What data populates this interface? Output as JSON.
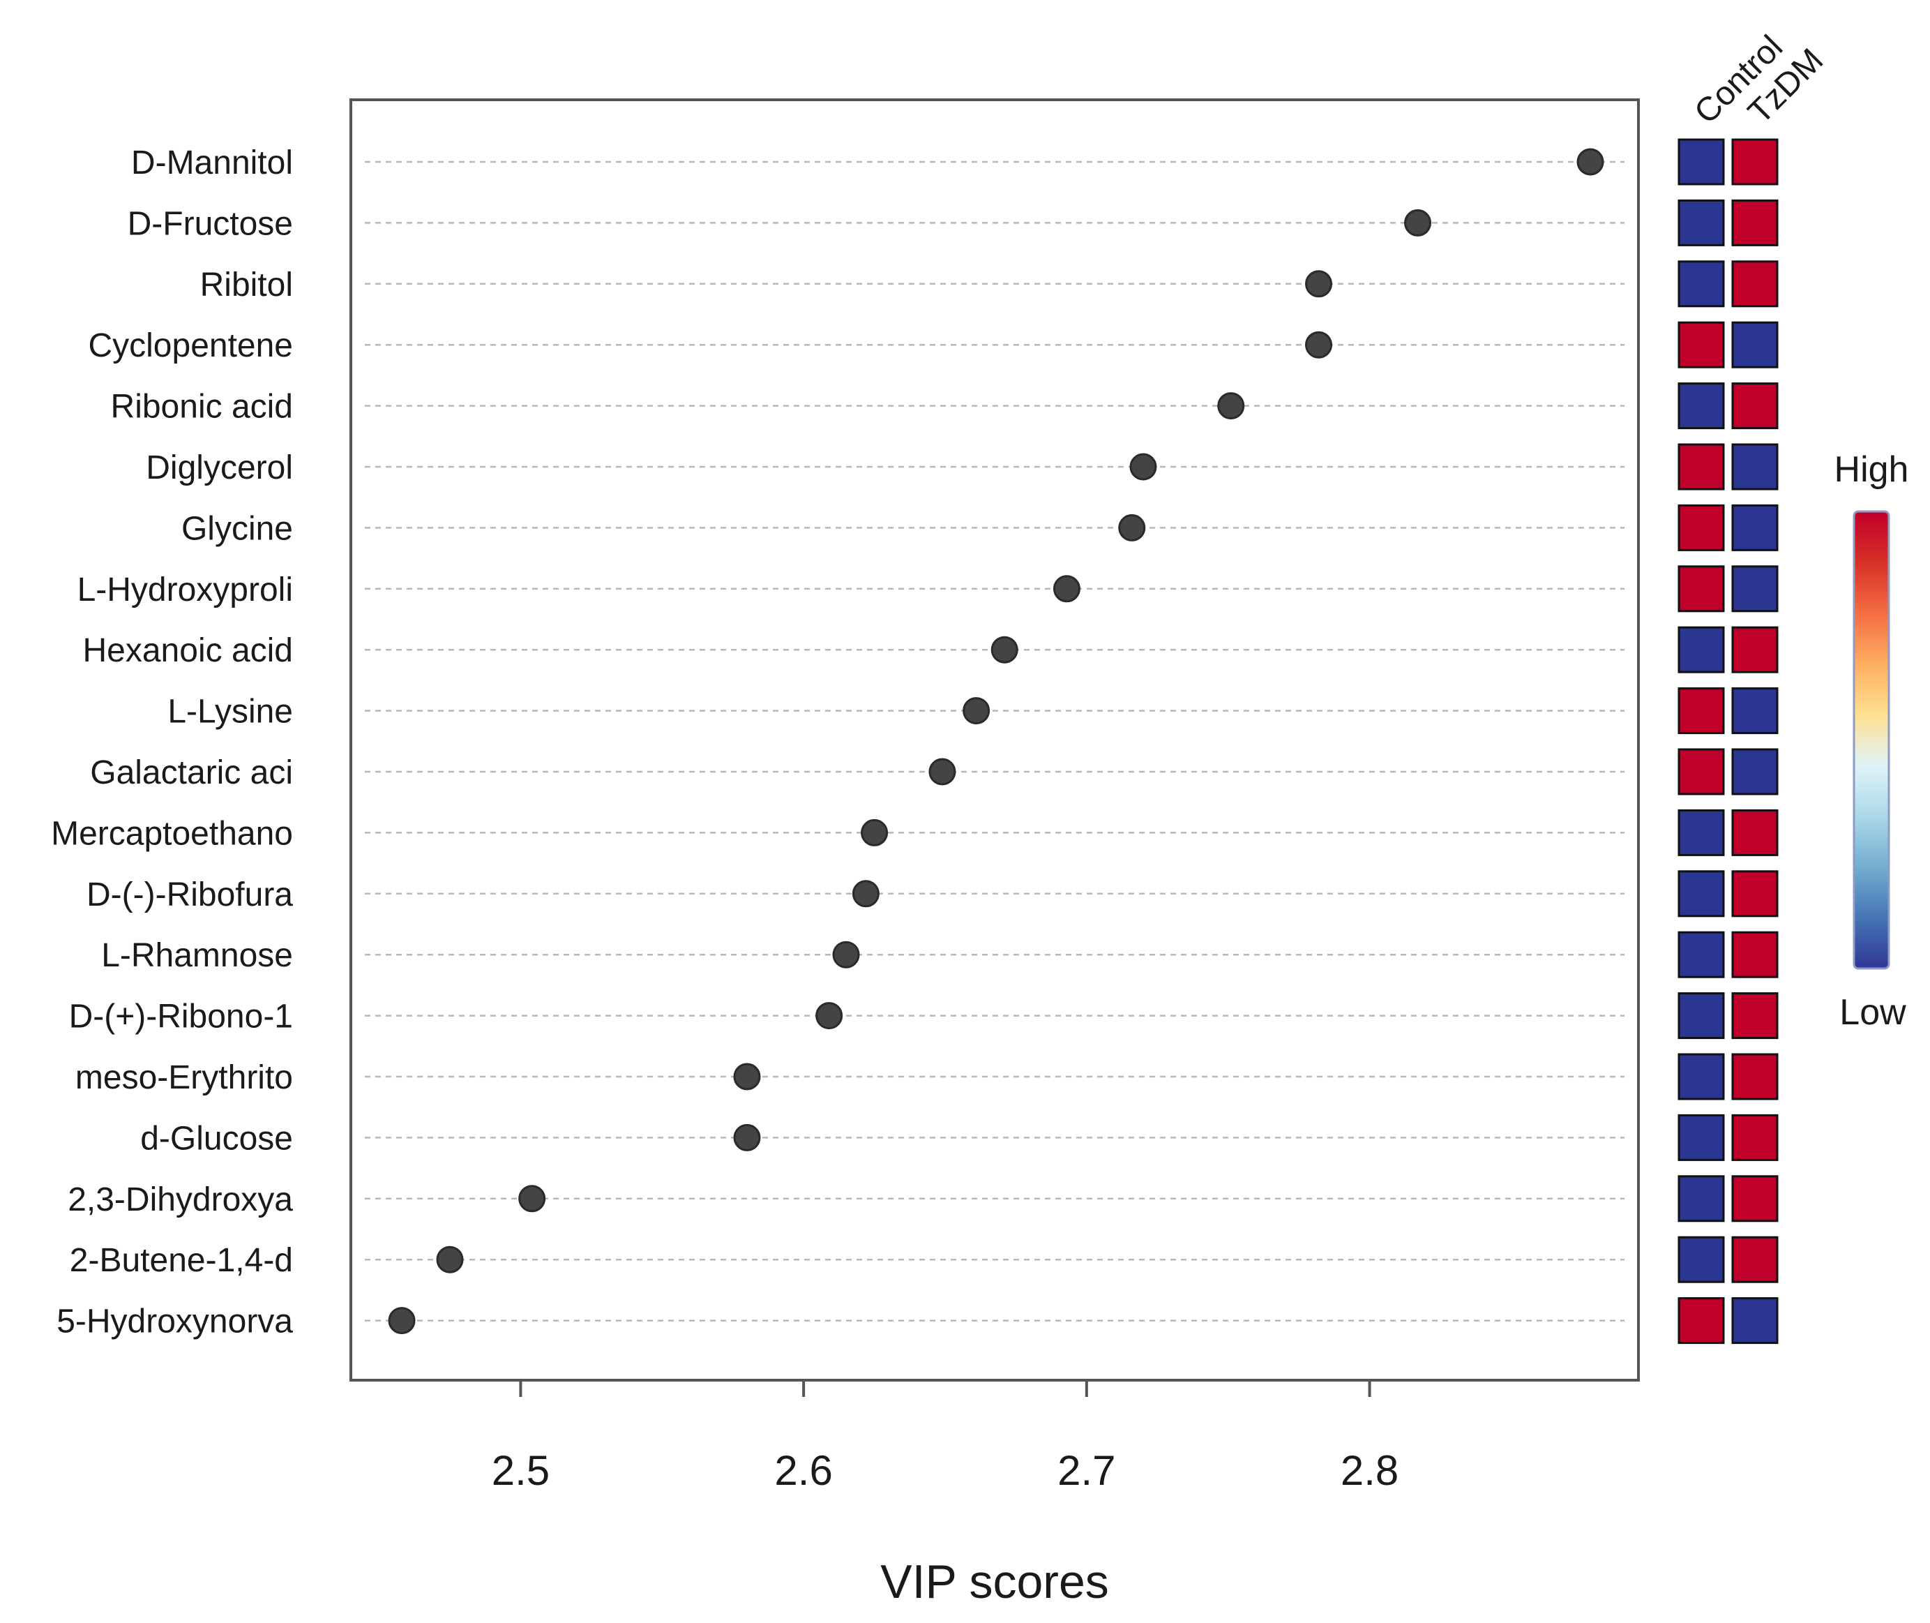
{
  "colors": {
    "high": "#c0002a",
    "low": "#2b3592",
    "point": "#444444",
    "grid": "#b8b8b8",
    "frame": "#555555",
    "gradient": [
      "#313695",
      "#4575b4",
      "#74add1",
      "#abd9e9",
      "#e0f3f8",
      "#fee090",
      "#fdae61",
      "#f46d43",
      "#d73027",
      "#c0002a"
    ]
  },
  "chart_data": {
    "type": "scatter",
    "xlabel": "VIP scores",
    "ylabel": "",
    "xlim": [
      2.44,
      2.895
    ],
    "xticks": [
      2.5,
      2.6,
      2.7,
      2.8
    ],
    "xtick_labels": [
      "2.5",
      "2.6",
      "2.7",
      "2.8"
    ],
    "grid": "horizontal dashed",
    "groups": [
      "Control",
      "TzDM"
    ],
    "legend": {
      "high_label": "High",
      "low_label": "Low",
      "position": "right"
    },
    "metabolites": [
      {
        "name": "D-Mannitol",
        "vip": 2.878,
        "control": "low",
        "tzdm": "high"
      },
      {
        "name": "D-Fructose",
        "vip": 2.817,
        "control": "low",
        "tzdm": "high"
      },
      {
        "name": "Ribitol",
        "vip": 2.782,
        "control": "low",
        "tzdm": "high"
      },
      {
        "name": "Cyclopentene",
        "vip": 2.782,
        "control": "high",
        "tzdm": "low"
      },
      {
        "name": "Ribonic acid",
        "vip": 2.751,
        "control": "low",
        "tzdm": "high"
      },
      {
        "name": "Diglycerol",
        "vip": 2.72,
        "control": "high",
        "tzdm": "low"
      },
      {
        "name": "Glycine",
        "vip": 2.716,
        "control": "high",
        "tzdm": "low"
      },
      {
        "name": "L-Hydroxyproli",
        "vip": 2.693,
        "control": "high",
        "tzdm": "low"
      },
      {
        "name": "Hexanoic acid",
        "vip": 2.671,
        "control": "low",
        "tzdm": "high"
      },
      {
        "name": "L-Lysine",
        "vip": 2.661,
        "control": "high",
        "tzdm": "low"
      },
      {
        "name": "Galactaric aci",
        "vip": 2.649,
        "control": "high",
        "tzdm": "low"
      },
      {
        "name": "Mercaptoethano",
        "vip": 2.625,
        "control": "low",
        "tzdm": "high"
      },
      {
        "name": "D-(-)-Ribofura",
        "vip": 2.622,
        "control": "low",
        "tzdm": "high"
      },
      {
        "name": "L-Rhamnose",
        "vip": 2.615,
        "control": "low",
        "tzdm": "high"
      },
      {
        "name": "D-(+)-Ribono-1",
        "vip": 2.609,
        "control": "low",
        "tzdm": "high"
      },
      {
        "name": "meso-Erythrito",
        "vip": 2.58,
        "control": "low",
        "tzdm": "high"
      },
      {
        "name": "d-Glucose",
        "vip": 2.58,
        "control": "low",
        "tzdm": "high"
      },
      {
        "name": "2,3-Dihydroxya",
        "vip": 2.504,
        "control": "low",
        "tzdm": "high"
      },
      {
        "name": "2-Butene-1,4-d",
        "vip": 2.475,
        "control": "low",
        "tzdm": "high"
      },
      {
        "name": "5-Hydroxynorva",
        "vip": 2.458,
        "control": "high",
        "tzdm": "low"
      }
    ]
  }
}
